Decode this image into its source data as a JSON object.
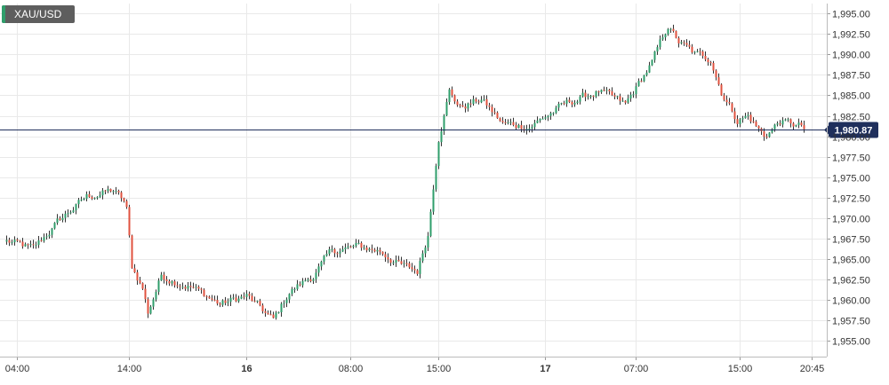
{
  "chart_data": {
    "type": "candlestick",
    "title": "XAU/USD",
    "y_ticks": [
      "1,995.00",
      "1,992.50",
      "1,990.00",
      "1,987.50",
      "1,985.00",
      "1,982.50",
      "1,980.00",
      "1,977.50",
      "1,975.00",
      "1,972.50",
      "1,970.00",
      "1,967.50",
      "1,965.00",
      "1,962.50",
      "1,960.00",
      "1,957.50",
      "1,955.00"
    ],
    "y_tick_values": [
      1995.0,
      1992.5,
      1990.0,
      1987.5,
      1985.0,
      1982.5,
      1980.0,
      1977.5,
      1975.0,
      1972.5,
      1970.0,
      1967.5,
      1965.0,
      1962.5,
      1960.0,
      1957.5,
      1955.0
    ],
    "ylim": [
      1953.1,
      1996.2
    ],
    "x_ticks": [
      {
        "label": "04:00",
        "bold": false
      },
      {
        "label": "14:00",
        "bold": false
      },
      {
        "label": "16",
        "bold": true
      },
      {
        "label": "08:00",
        "bold": false
      },
      {
        "label": "15:00",
        "bold": false
      },
      {
        "label": "17",
        "bold": true
      },
      {
        "label": "07:00",
        "bold": false
      },
      {
        "label": "15:00",
        "bold": false
      },
      {
        "label": "20:45",
        "bold": false
      }
    ],
    "candle_count": 300,
    "x_tick_candle_index": [
      4,
      46,
      90,
      129,
      162,
      202,
      236,
      275,
      302
    ],
    "current_price": 1980.87,
    "current_price_label": "1,980.87",
    "grid": true,
    "colors": {
      "up": "#2f9e6b",
      "down": "#e0523f",
      "wick": "#333333",
      "grid": "#e9e9e9",
      "price_line": "#1f2f5c",
      "price_badge": "#1f2f5c"
    },
    "path_anchors": [
      [
        0,
        1967.2
      ],
      [
        10,
        1966.2
      ],
      [
        20,
        1969.8
      ],
      [
        30,
        1972.6
      ],
      [
        40,
        1973.4
      ],
      [
        44,
        1972.0
      ],
      [
        45,
        1971.0
      ],
      [
        47,
        1964.0
      ],
      [
        51,
        1961.5
      ],
      [
        53,
        1958.5
      ],
      [
        58,
        1963.0
      ],
      [
        70,
        1961.5
      ],
      [
        80,
        1959.5
      ],
      [
        90,
        1960.5
      ],
      [
        100,
        1957.5
      ],
      [
        106,
        1961.0
      ],
      [
        115,
        1963.0
      ],
      [
        122,
        1966.0
      ],
      [
        132,
        1966.5
      ],
      [
        140,
        1966.0
      ],
      [
        148,
        1964.2
      ],
      [
        154,
        1963.5
      ],
      [
        158,
        1968.0
      ],
      [
        162,
        1980.0
      ],
      [
        166,
        1985.5
      ],
      [
        170,
        1983.5
      ],
      [
        178,
        1984.5
      ],
      [
        186,
        1981.5
      ],
      [
        196,
        1981.2
      ],
      [
        210,
        1984.0
      ],
      [
        222,
        1985.5
      ],
      [
        232,
        1983.8
      ],
      [
        242,
        1989.0
      ],
      [
        248,
        1993.5
      ],
      [
        252,
        1991.5
      ],
      [
        258,
        1990.0
      ],
      [
        264,
        1989.5
      ],
      [
        268,
        1985.5
      ],
      [
        274,
        1982.0
      ],
      [
        278,
        1982.5
      ],
      [
        284,
        1980.0
      ],
      [
        290,
        1981.8
      ],
      [
        302,
        1980.9
      ]
    ]
  }
}
